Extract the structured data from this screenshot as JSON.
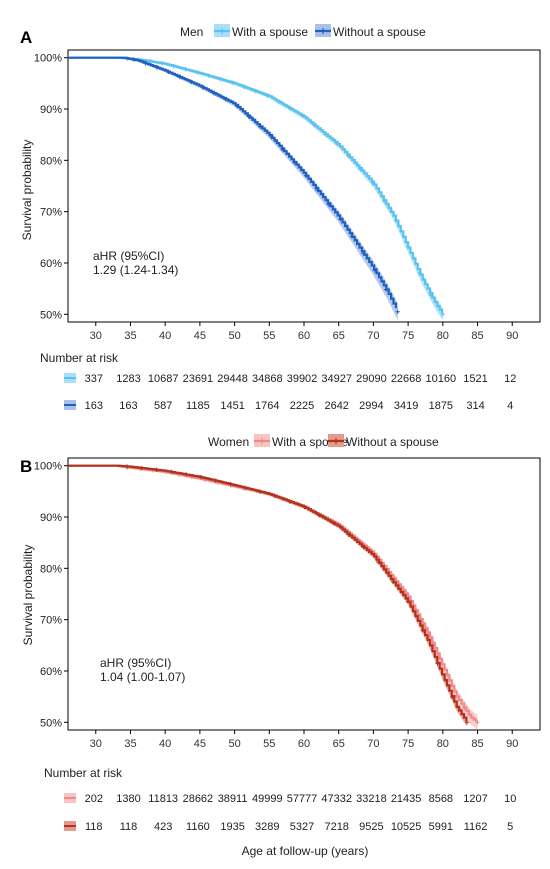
{
  "chart_data": [
    {
      "type": "line",
      "panel_label": "A",
      "legend_title": "Men",
      "legend_position": "top",
      "ylabel": "Survival probability",
      "xlim": [
        26,
        94
      ],
      "ylim": [
        48.5,
        101.5
      ],
      "x_ticks": [
        "30",
        "35",
        "40",
        "45",
        "50",
        "55",
        "60",
        "65",
        "70",
        "75",
        "80",
        "85",
        "90"
      ],
      "y_ticks": [
        "50%",
        "60%",
        "70%",
        "80%",
        "90%",
        "100%"
      ],
      "grid": false,
      "annotation": [
        "aHR (95%CI)",
        "1.29 (1.24-1.34)"
      ],
      "series": [
        {
          "name": "With a spouse",
          "color": "#5bc2ef",
          "band_color": "#a9dff7",
          "x": [
            26,
            33,
            35,
            37,
            40,
            45,
            50,
            55,
            60,
            65,
            70,
            73,
            75,
            77,
            79,
            80
          ],
          "y": [
            100,
            100,
            99.8,
            99.5,
            98.8,
            97,
            95,
            92.5,
            88.5,
            83,
            75.5,
            69,
            63,
            57,
            52,
            50
          ],
          "band_width": 0.8
        },
        {
          "name": "Without a spouse",
          "color": "#1f5fbf",
          "band_color": "#a8c1e6",
          "x": [
            26,
            34,
            36,
            38,
            40,
            45,
            50,
            55,
            60,
            65,
            70,
            72,
            73.5
          ],
          "y": [
            100,
            100,
            99.5,
            98.5,
            97.5,
            94.5,
            91,
            85,
            77.5,
            69,
            59,
            54.5,
            50.5
          ],
          "band_width": 1.4
        }
      ],
      "risk_table": {
        "title": "Number at risk",
        "rows": [
          [
            "337",
            "1283",
            "10687",
            "23691",
            "29448",
            "34868",
            "39902",
            "34927",
            "29090",
            "22668",
            "10160",
            "1521",
            "12"
          ],
          [
            "163",
            "163",
            "587",
            "1185",
            "1451",
            "1764",
            "2225",
            "2642",
            "2994",
            "3419",
            "1875",
            "314",
            "4"
          ]
        ]
      }
    },
    {
      "type": "line",
      "panel_label": "B",
      "legend_title": "Women",
      "legend_position": "top",
      "ylabel": "Survival probability",
      "xlabel": "Age at follow-up (years)",
      "xlim": [
        26,
        94
      ],
      "ylim": [
        48.5,
        101.5
      ],
      "x_ticks": [
        "30",
        "35",
        "40",
        "45",
        "50",
        "55",
        "60",
        "65",
        "70",
        "75",
        "80",
        "85",
        "90"
      ],
      "y_ticks": [
        "50%",
        "60%",
        "70%",
        "80%",
        "90%",
        "100%"
      ],
      "grid": false,
      "annotation": [
        "aHR (95%CI)",
        "1.04 (1.00-1.07)"
      ],
      "series": [
        {
          "name": "With a spouse",
          "color": "#f08a8a",
          "band_color": "#f7c4c4",
          "x": [
            26,
            33,
            35,
            40,
            45,
            50,
            55,
            60,
            65,
            70,
            75,
            78,
            80,
            82,
            84,
            85
          ],
          "y": [
            100,
            100,
            99.6,
            98.8,
            97.5,
            96,
            94.5,
            92,
            88.5,
            83,
            74.5,
            67,
            61,
            55,
            51,
            50
          ],
          "band_width": 1.0
        },
        {
          "name": "Without a spouse",
          "color": "#b3321d",
          "band_color": "#e39a8c",
          "x": [
            26,
            33,
            35,
            40,
            45,
            50,
            55,
            60,
            65,
            70,
            75,
            78,
            80,
            82,
            83.5
          ],
          "y": [
            100,
            100,
            99.8,
            99,
            97.8,
            96.2,
            94.5,
            92,
            88.2,
            82.5,
            73.5,
            65.5,
            59,
            53,
            50
          ],
          "band_width": 0.6
        }
      ],
      "risk_table": {
        "title": "Number at risk",
        "rows": [
          [
            "202",
            "1380",
            "11813",
            "28662",
            "38911",
            "49999",
            "57777",
            "47332",
            "33218",
            "21435",
            "8568",
            "1207",
            "10"
          ],
          [
            "118",
            "118",
            "423",
            "1160",
            "1935",
            "3289",
            "5327",
            "7218",
            "9525",
            "10525",
            "5991",
            "1162",
            "5"
          ]
        ]
      }
    }
  ]
}
